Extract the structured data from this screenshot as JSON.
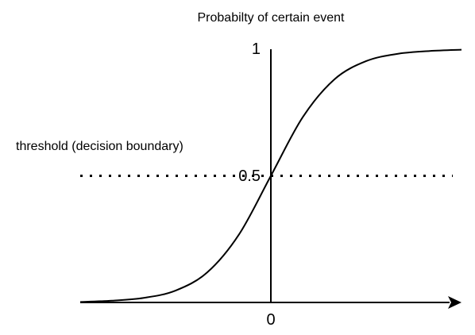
{
  "chart_data": {
    "type": "line",
    "title": "Probabilty of certain event",
    "curve": "sigmoid",
    "x_axis": {
      "origin_label": "0",
      "arrow": true
    },
    "y_axis": {
      "ticks": [
        {
          "value": 1,
          "label": "1"
        },
        {
          "value": 0.5,
          "label": "0.5"
        }
      ],
      "ylim": [
        0,
        1
      ]
    },
    "threshold": {
      "value": 0.5,
      "label": "threshold (decision boundary)",
      "style": "dotted"
    },
    "series": [
      {
        "x": [
          -6,
          -5,
          -4,
          -3,
          -2,
          -1,
          0,
          1,
          2,
          3,
          4,
          5,
          6
        ],
        "y": [
          0.002,
          0.007,
          0.018,
          0.047,
          0.119,
          0.269,
          0.5,
          0.731,
          0.881,
          0.953,
          0.982,
          0.993,
          0.998
        ]
      }
    ],
    "xlim": [
      -6,
      6
    ],
    "grid": false,
    "colors": {
      "line": "#000000",
      "axis": "#000000",
      "text": "#000000"
    }
  }
}
